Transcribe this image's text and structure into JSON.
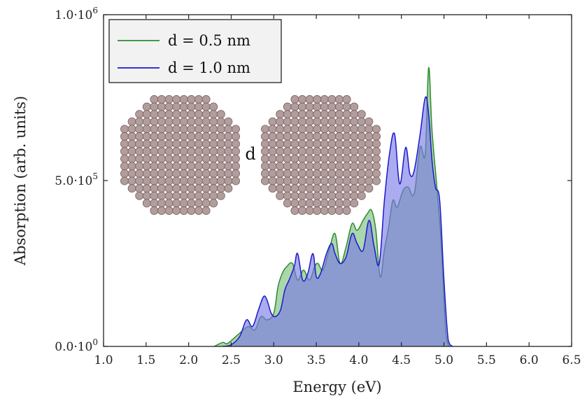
{
  "chart_data": {
    "type": "area",
    "xlabel": "Energy (eV)",
    "ylabel": "Absorption (arb. units)",
    "xlim": [
      1.0,
      6.5
    ],
    "ylim": [
      0,
      1000000
    ],
    "x_ticks": [
      "1.0",
      "1.5",
      "2.0",
      "2.5",
      "3.0",
      "3.5",
      "4.0",
      "4.5",
      "5.0",
      "5.5",
      "6.0",
      "6.5"
    ],
    "y_ticks": [
      {
        "value": 0,
        "mantissa": "0.0·10",
        "exponent": "0"
      },
      {
        "value": 500000,
        "mantissa": "5.0·10",
        "exponent": "5"
      },
      {
        "value": 1000000,
        "mantissa": "1.0·10",
        "exponent": "6"
      }
    ],
    "legend_position": "top-left",
    "inset_label": "d",
    "series": [
      {
        "name": "d = 0.5 nm",
        "line_color": "#2e8b2e",
        "fill_color": "#7fc07f",
        "x": [
          2.3,
          2.4,
          2.45,
          2.52,
          2.6,
          2.7,
          2.78,
          2.85,
          2.92,
          3.0,
          3.05,
          3.1,
          3.15,
          3.22,
          3.28,
          3.35,
          3.42,
          3.48,
          3.52,
          3.58,
          3.65,
          3.72,
          3.78,
          3.85,
          3.92,
          3.98,
          4.05,
          4.1,
          4.15,
          4.2,
          4.25,
          4.3,
          4.35,
          4.4,
          4.45,
          4.52,
          4.58,
          4.65,
          4.72,
          4.78,
          4.82,
          4.86,
          4.92,
          4.97,
          5.02,
          5.06
        ],
        "y": [
          0,
          12000,
          8000,
          22000,
          40000,
          60000,
          50000,
          90000,
          80000,
          100000,
          180000,
          220000,
          240000,
          250000,
          200000,
          230000,
          200000,
          240000,
          250000,
          230000,
          290000,
          340000,
          250000,
          300000,
          370000,
          350000,
          380000,
          400000,
          410000,
          350000,
          210000,
          290000,
          360000,
          440000,
          420000,
          470000,
          480000,
          460000,
          600000,
          580000,
          840000,
          650000,
          470000,
          300000,
          50000,
          0
        ]
      },
      {
        "name": "d = 1.0 nm",
        "line_color": "#1a1ac8",
        "fill_color": "#7878e6",
        "x": [
          2.4,
          2.5,
          2.6,
          2.68,
          2.75,
          2.82,
          2.88,
          2.92,
          2.97,
          3.02,
          3.08,
          3.13,
          3.18,
          3.24,
          3.28,
          3.34,
          3.4,
          3.46,
          3.5,
          3.55,
          3.62,
          3.68,
          3.72,
          3.78,
          3.85,
          3.92,
          3.98,
          4.05,
          4.12,
          4.18,
          4.24,
          4.3,
          4.36,
          4.42,
          4.48,
          4.55,
          4.6,
          4.65,
          4.72,
          4.78,
          4.82,
          4.86,
          4.9,
          4.95,
          5.0,
          5.05,
          5.1
        ],
        "y": [
          0,
          5000,
          30000,
          80000,
          60000,
          110000,
          150000,
          140000,
          100000,
          90000,
          110000,
          170000,
          200000,
          240000,
          280000,
          200000,
          220000,
          280000,
          210000,
          220000,
          280000,
          310000,
          280000,
          250000,
          270000,
          340000,
          310000,
          290000,
          380000,
          300000,
          250000,
          440000,
          580000,
          640000,
          490000,
          600000,
          520000,
          530000,
          640000,
          750000,
          700000,
          560000,
          480000,
          440000,
          200000,
          20000,
          0
        ]
      }
    ]
  }
}
